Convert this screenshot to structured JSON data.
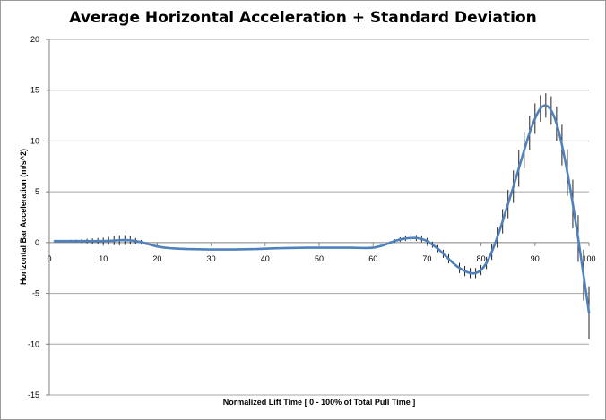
{
  "chart_data": {
    "type": "line",
    "title": "Average Horizontal Acceleration + Standard Deviation",
    "xlabel": "Normalized Lift Time [ 0 - 100% of Total Pull Time ]",
    "ylabel": "Horizontal Bar Acceleration (m/s^2)",
    "xlim": [
      0,
      100
    ],
    "ylim": [
      -15,
      20
    ],
    "x_ticks": [
      0,
      10,
      20,
      30,
      40,
      50,
      60,
      70,
      80,
      90,
      100
    ],
    "y_ticks": [
      -15,
      -10,
      -5,
      0,
      5,
      10,
      15,
      20
    ],
    "grid": "horizontal",
    "legend": "none",
    "line_color": "#4f81bd",
    "error_bar_color": "#222222",
    "series": [
      {
        "x": [
          1,
          2,
          3,
          4,
          5,
          6,
          7,
          8,
          9,
          10,
          11,
          12,
          13,
          14,
          15,
          16,
          17,
          18,
          19,
          20,
          21,
          22,
          23,
          24,
          25,
          26,
          27,
          28,
          29,
          30,
          31,
          32,
          33,
          34,
          35,
          36,
          37,
          38,
          39,
          40,
          41,
          42,
          43,
          44,
          45,
          46,
          47,
          48,
          49,
          50,
          51,
          52,
          53,
          54,
          55,
          56,
          57,
          58,
          59,
          60,
          61,
          62,
          63,
          64,
          65,
          66,
          67,
          68,
          69,
          70,
          71,
          72,
          73,
          74,
          75,
          76,
          77,
          78,
          79,
          80,
          81,
          82,
          83,
          84,
          85,
          86,
          87,
          88,
          89,
          90,
          91,
          92,
          93,
          94,
          95,
          96,
          97,
          98,
          99,
          100
        ],
        "y": [
          0.15,
          0.15,
          0.15,
          0.15,
          0.15,
          0.15,
          0.15,
          0.15,
          0.15,
          0.15,
          0.17,
          0.2,
          0.23,
          0.25,
          0.22,
          0.15,
          0.05,
          -0.1,
          -0.25,
          -0.38,
          -0.47,
          -0.53,
          -0.57,
          -0.6,
          -0.62,
          -0.64,
          -0.65,
          -0.66,
          -0.67,
          -0.68,
          -0.68,
          -0.68,
          -0.68,
          -0.68,
          -0.67,
          -0.66,
          -0.65,
          -0.64,
          -0.62,
          -0.6,
          -0.58,
          -0.56,
          -0.55,
          -0.54,
          -0.53,
          -0.52,
          -0.51,
          -0.5,
          -0.5,
          -0.5,
          -0.5,
          -0.5,
          -0.5,
          -0.5,
          -0.5,
          -0.5,
          -0.52,
          -0.53,
          -0.53,
          -0.5,
          -0.4,
          -0.25,
          -0.05,
          0.15,
          0.3,
          0.4,
          0.45,
          0.45,
          0.35,
          0.15,
          -0.2,
          -0.6,
          -1.1,
          -1.6,
          -2.1,
          -2.5,
          -2.8,
          -3.0,
          -3.0,
          -2.7,
          -2.0,
          -0.9,
          0.5,
          2.1,
          3.8,
          5.5,
          7.3,
          9.1,
          10.8,
          12.2,
          13.2,
          13.5,
          13.0,
          11.7,
          9.6,
          6.9,
          3.8,
          0.4,
          -3.2,
          -6.9
        ],
        "err": [
          0.1,
          0.1,
          0.1,
          0.12,
          0.14,
          0.18,
          0.22,
          0.26,
          0.3,
          0.33,
          0.38,
          0.45,
          0.5,
          0.48,
          0.4,
          0.3,
          0.2,
          0.15,
          0.12,
          0.1,
          0.08,
          0.06,
          0.05,
          0.05,
          0.05,
          0.05,
          0.05,
          0.05,
          0.05,
          0.05,
          0.05,
          0.05,
          0.05,
          0.05,
          0.05,
          0.05,
          0.05,
          0.05,
          0.05,
          0.05,
          0.05,
          0.05,
          0.06,
          0.06,
          0.06,
          0.06,
          0.06,
          0.07,
          0.07,
          0.08,
          0.08,
          0.08,
          0.08,
          0.08,
          0.08,
          0.08,
          0.08,
          0.08,
          0.08,
          0.08,
          0.1,
          0.12,
          0.14,
          0.18,
          0.22,
          0.25,
          0.28,
          0.3,
          0.3,
          0.3,
          0.3,
          0.35,
          0.4,
          0.45,
          0.5,
          0.5,
          0.5,
          0.5,
          0.5,
          0.5,
          0.6,
          0.8,
          1.0,
          1.2,
          1.4,
          1.6,
          1.8,
          1.8,
          1.7,
          1.5,
          1.3,
          1.2,
          1.4,
          1.7,
          2.0,
          2.3,
          2.4,
          2.3,
          2.5,
          2.6
        ]
      }
    ]
  }
}
